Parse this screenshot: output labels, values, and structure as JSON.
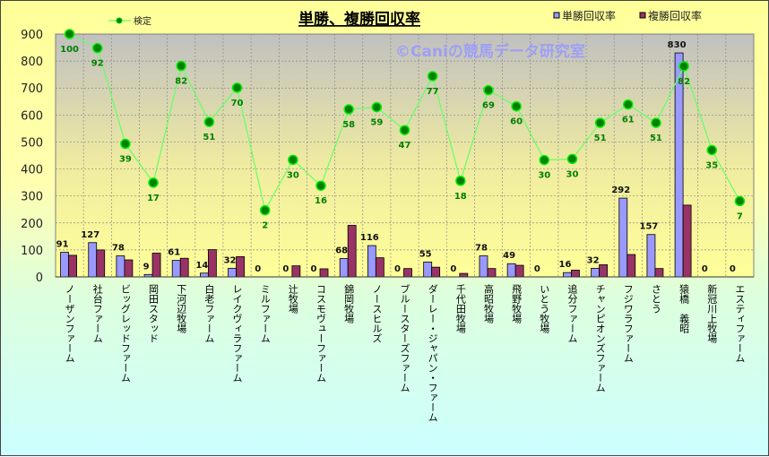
{
  "chart_data": {
    "type": "bar",
    "title": "単勝、複勝回収率",
    "watermark": "©Caniの競馬データ研究室",
    "xlabel": "",
    "ylabel": "",
    "ylim": [
      0,
      900
    ],
    "yticks": [
      0,
      100,
      200,
      300,
      400,
      500,
      600,
      700,
      800,
      900
    ],
    "grid": true,
    "legend_placement": "top",
    "categories": [
      "ノーザンファーム",
      "社台ファーム",
      "ビッグレッドファーム",
      "岡田スタッド",
      "下河辺牧場",
      "白老ファーム",
      "レイクヴィラファーム",
      "ミルファーム",
      "辻牧場",
      "コスモヴューファーム",
      "錦岡牧場",
      "ノースヒルズ",
      "ブルースターズファーム",
      "ダーレー・ジャパン・ファーム",
      "千代田牧場",
      "高昭牧場",
      "飛野牧場",
      "いとう牧場",
      "追分ファーム",
      "チャンピオンズファーム",
      "フジワラファーム",
      "さとう",
      "猿橋　義昭",
      "新冠川上牧場",
      "エスティファーム"
    ],
    "series": [
      {
        "name": "単勝回収率",
        "type": "bar",
        "color": "#9999ff",
        "show_labels": true,
        "values": [
          91,
          127,
          78,
          9,
          61,
          14,
          32,
          0,
          0,
          0,
          68,
          116,
          0,
          55,
          0,
          78,
          49,
          0,
          16,
          32,
          292,
          157,
          830,
          0,
          0
        ]
      },
      {
        "name": "複勝回収率",
        "type": "bar",
        "color": "#993366",
        "show_labels": false,
        "values": [
          80,
          100,
          63,
          88,
          69,
          101,
          75,
          0,
          41,
          30,
          191,
          71,
          31,
          36,
          13,
          31,
          43,
          0,
          25,
          45,
          83,
          31,
          266,
          0,
          0
        ]
      },
      {
        "name": "検定",
        "type": "line",
        "color": "#66ff66",
        "marker_color": "#008000",
        "values": [
          900,
          848,
          493,
          349,
          782,
          574,
          701,
          247,
          434,
          338,
          621,
          629,
          544,
          744,
          356,
          692,
          632,
          433,
          437,
          571,
          639,
          571,
          781,
          470,
          281
        ],
        "labels": [
          100,
          92,
          39,
          17,
          82,
          51,
          70,
          2,
          30,
          16,
          58,
          59,
          47,
          77,
          18,
          69,
          60,
          30,
          30,
          51,
          61,
          51,
          82,
          35,
          7
        ]
      }
    ]
  }
}
